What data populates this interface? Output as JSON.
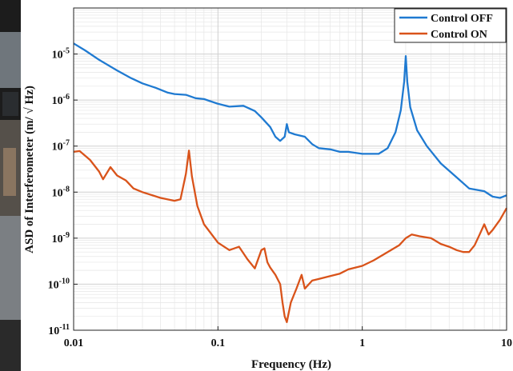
{
  "colors": {
    "control_off": "#1f7ad1",
    "control_on": "#d9531a",
    "background_strip": "#1c1c1c"
  },
  "chart_data": {
    "type": "line",
    "xlabel": "Frequency (Hz)",
    "ylabel": "ASD of Interferometer (m/ √ Hz)",
    "x_scale": "log",
    "y_scale": "log",
    "xlim": [
      0.01,
      10
    ],
    "ylim": [
      1e-11,
      0.0001
    ],
    "grid": true,
    "legend_position": "top-right",
    "x_ticks": [
      {
        "value": 0.01,
        "label": "0.01"
      },
      {
        "value": 0.1,
        "label": "0.1"
      },
      {
        "value": 1,
        "label": "1"
      },
      {
        "value": 10,
        "label": "10"
      }
    ],
    "y_ticks": [
      {
        "value": 1e-11,
        "base": "10",
        "exp": "-11"
      },
      {
        "value": 1e-10,
        "base": "10",
        "exp": "-10"
      },
      {
        "value": 1e-09,
        "base": "10",
        "exp": "-9"
      },
      {
        "value": 1e-08,
        "base": "10",
        "exp": "-8"
      },
      {
        "value": 1e-07,
        "base": "10",
        "exp": "-7"
      },
      {
        "value": 1e-06,
        "base": "10",
        "exp": "-6"
      },
      {
        "value": 1e-05,
        "base": "10",
        "exp": "-5"
      }
    ],
    "series": [
      {
        "name": "Control OFF",
        "color": "#1f7ad1",
        "points": [
          [
            0.01,
            1.7e-05
          ],
          [
            0.012,
            1.2e-05
          ],
          [
            0.015,
            7.5e-06
          ],
          [
            0.02,
            4.4e-06
          ],
          [
            0.025,
            3e-06
          ],
          [
            0.03,
            2.3e-06
          ],
          [
            0.037,
            1.85e-06
          ],
          [
            0.045,
            1.45e-06
          ],
          [
            0.05,
            1.35e-06
          ],
          [
            0.06,
            1.3e-06
          ],
          [
            0.07,
            1.1e-06
          ],
          [
            0.08,
            1.05e-06
          ],
          [
            0.1,
            8.3e-07
          ],
          [
            0.12,
            7.2e-07
          ],
          [
            0.15,
            7.5e-07
          ],
          [
            0.18,
            5.8e-07
          ],
          [
            0.2,
            4.2e-07
          ],
          [
            0.23,
            2.6e-07
          ],
          [
            0.25,
            1.6e-07
          ],
          [
            0.27,
            1.3e-07
          ],
          [
            0.29,
            1.6e-07
          ],
          [
            0.3,
            3e-07
          ],
          [
            0.31,
            2e-07
          ],
          [
            0.34,
            1.8e-07
          ],
          [
            0.4,
            1.6e-07
          ],
          [
            0.45,
            1.1e-07
          ],
          [
            0.5,
            9e-08
          ],
          [
            0.6,
            8.5e-08
          ],
          [
            0.7,
            7.5e-08
          ],
          [
            0.8,
            7.5e-08
          ],
          [
            1.0,
            6.8e-08
          ],
          [
            1.3,
            6.8e-08
          ],
          [
            1.5,
            9e-08
          ],
          [
            1.7,
            2e-07
          ],
          [
            1.85,
            6e-07
          ],
          [
            1.95,
            2.5e-06
          ],
          [
            2.0,
            9e-06
          ],
          [
            2.05,
            2.5e-06
          ],
          [
            2.15,
            7e-07
          ],
          [
            2.4,
            2.2e-07
          ],
          [
            2.8,
            1e-07
          ],
          [
            3.5,
            4.2e-08
          ],
          [
            4.5,
            2.1e-08
          ],
          [
            5.5,
            1.2e-08
          ],
          [
            7.0,
            1.05e-08
          ],
          [
            8.0,
            8e-09
          ],
          [
            9.0,
            7.5e-09
          ],
          [
            10.0,
            8.5e-09
          ]
        ]
      },
      {
        "name": "Control ON",
        "color": "#d9531a",
        "points": [
          [
            0.01,
            7.5e-08
          ],
          [
            0.011,
            7.8e-08
          ],
          [
            0.013,
            5e-08
          ],
          [
            0.015,
            2.8e-08
          ],
          [
            0.016,
            1.9e-08
          ],
          [
            0.018,
            3.5e-08
          ],
          [
            0.02,
            2.3e-08
          ],
          [
            0.023,
            1.8e-08
          ],
          [
            0.026,
            1.2e-08
          ],
          [
            0.03,
            1e-08
          ],
          [
            0.04,
            7.5e-09
          ],
          [
            0.05,
            6.5e-09
          ],
          [
            0.055,
            7e-09
          ],
          [
            0.06,
            2.5e-08
          ],
          [
            0.063,
            8e-08
          ],
          [
            0.066,
            2.2e-08
          ],
          [
            0.072,
            5e-09
          ],
          [
            0.08,
            2e-09
          ],
          [
            0.1,
            8e-10
          ],
          [
            0.12,
            5.5e-10
          ],
          [
            0.14,
            6.5e-10
          ],
          [
            0.16,
            3.5e-10
          ],
          [
            0.18,
            2.2e-10
          ],
          [
            0.2,
            5.5e-10
          ],
          [
            0.21,
            6e-10
          ],
          [
            0.22,
            3e-10
          ],
          [
            0.23,
            2.3e-10
          ],
          [
            0.25,
            1.6e-10
          ],
          [
            0.27,
            1e-10
          ],
          [
            0.28,
            4e-11
          ],
          [
            0.29,
            2e-11
          ],
          [
            0.3,
            1.5e-11
          ],
          [
            0.32,
            4e-11
          ],
          [
            0.35,
            8e-11
          ],
          [
            0.38,
            1.6e-10
          ],
          [
            0.4,
            8e-11
          ],
          [
            0.45,
            1.2e-10
          ],
          [
            0.5,
            1.3e-10
          ],
          [
            0.6,
            1.5e-10
          ],
          [
            0.7,
            1.7e-10
          ],
          [
            0.8,
            2.1e-10
          ],
          [
            1.0,
            2.5e-10
          ],
          [
            1.2,
            3.3e-10
          ],
          [
            1.5,
            5e-10
          ],
          [
            1.8,
            7e-10
          ],
          [
            2.0,
            1e-09
          ],
          [
            2.2,
            1.2e-09
          ],
          [
            2.5,
            1.1e-09
          ],
          [
            3.0,
            1e-09
          ],
          [
            3.5,
            7.5e-10
          ],
          [
            4.0,
            6.5e-10
          ],
          [
            4.5,
            5.5e-10
          ],
          [
            5.0,
            5e-10
          ],
          [
            5.5,
            5e-10
          ],
          [
            6.0,
            7e-10
          ],
          [
            6.5,
            1.2e-09
          ],
          [
            7.0,
            2e-09
          ],
          [
            7.5,
            1.2e-09
          ],
          [
            8.0,
            1.5e-09
          ],
          [
            9.0,
            2.5e-09
          ],
          [
            10.0,
            4.5e-09
          ]
        ]
      }
    ]
  }
}
